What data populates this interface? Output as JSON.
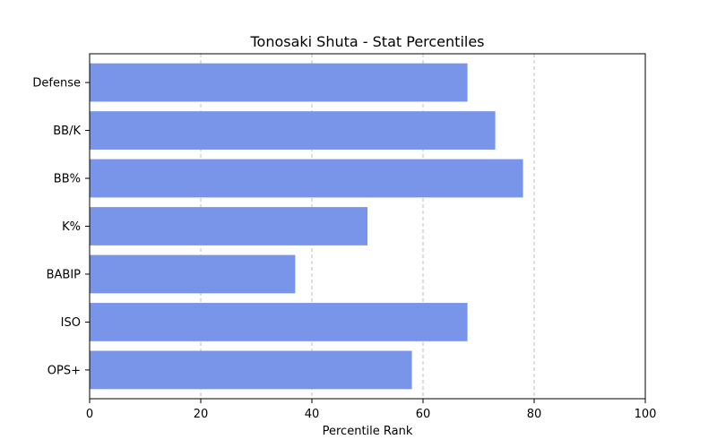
{
  "chart_data": {
    "type": "bar",
    "orientation": "horizontal",
    "title": "Tonosaki Shuta - Stat Percentiles",
    "xlabel": "Percentile Rank",
    "ylabel": "",
    "xlim": [
      0,
      100
    ],
    "xticks": [
      "0",
      "20",
      "40",
      "60",
      "80",
      "100"
    ],
    "grid": "x-dashed",
    "bar_color": "#7995e9",
    "categories": [
      "Defense",
      "BB/K",
      "BB%",
      "K%",
      "BABIP",
      "ISO",
      "OPS+"
    ],
    "values": [
      68,
      73,
      78,
      50,
      37,
      68,
      58
    ]
  }
}
